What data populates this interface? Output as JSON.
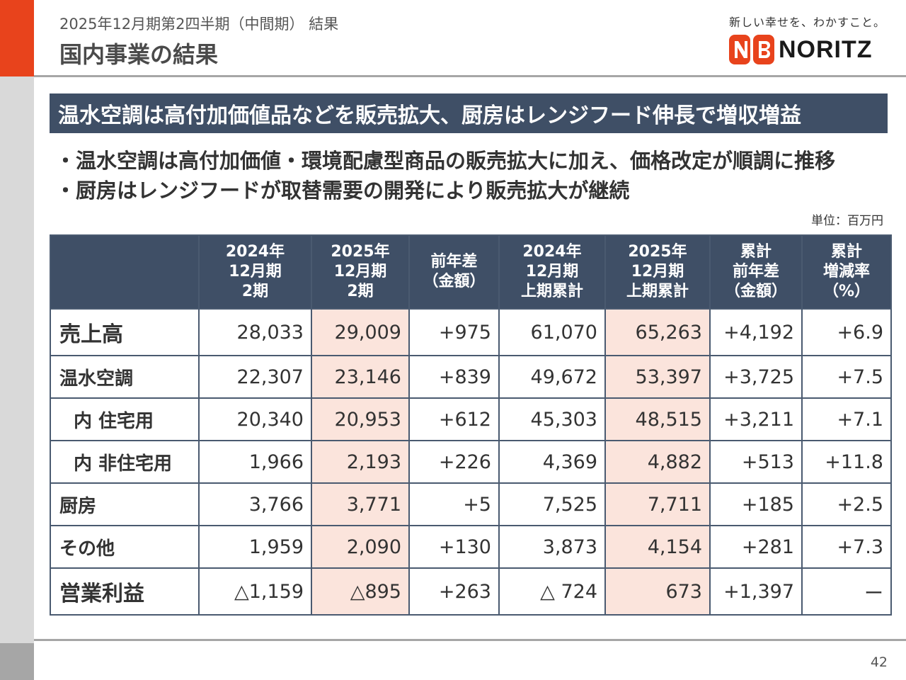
{
  "header": {
    "subtitle": "2025年12月期第2四半期（中間期） 結果",
    "title": "国内事業の結果"
  },
  "brand": {
    "tagline": "新しい幸せを、わかすこと。",
    "logo_text": "NORITZ",
    "accent_color": "#e8431c",
    "navy_color": "#3f4f66",
    "highlight_color": "#fbe4dc"
  },
  "banner": {
    "text": "温水空調は高付加価値品などを販売拡大、厨房はレンジフード伸長で増収増益"
  },
  "bullets": [
    "・温水空調は高付加価値・環境配慮型商品の販売拡大に加え、価格改定が順調に推移",
    "・厨房はレンジフードが取替需要の開発により販売拡大が継続"
  ],
  "unit": "単位：百万円",
  "table": {
    "columns": [
      "",
      "2024年\n12月期\n2期",
      "2025年\n12月期\n2期",
      "前年差\n（金額）",
      "2024年\n12月期\n上期累計",
      "2025年\n12月期\n上期累計",
      "累計\n前年差\n（金額）",
      "累計\n増減率\n（%）"
    ],
    "rows": [
      {
        "label": "売上高",
        "values": [
          "28,033",
          "29,009",
          "+975",
          "61,070",
          "65,263",
          "+4,192",
          "+6.9"
        ]
      },
      {
        "label": "温水空調",
        "values": [
          "22,307",
          "23,146",
          "+839",
          "49,672",
          "53,397",
          "+3,725",
          "+7.5"
        ]
      },
      {
        "label": "内 住宅用",
        "values": [
          "20,340",
          "20,953",
          "+612",
          "45,303",
          "48,515",
          "+3,211",
          "+7.1"
        ]
      },
      {
        "label": "内 非住宅用",
        "values": [
          "1,966",
          "2,193",
          "+226",
          "4,369",
          "4,882",
          "+513",
          "+11.8"
        ]
      },
      {
        "label": "厨房",
        "values": [
          "3,766",
          "3,771",
          "+5",
          "7,525",
          "7,711",
          "+185",
          "+2.5"
        ]
      },
      {
        "label": "その他",
        "values": [
          "1,959",
          "2,090",
          "+130",
          "3,873",
          "4,154",
          "+281",
          "+7.3"
        ]
      },
      {
        "label": "営業利益",
        "values": [
          "△1,159",
          "△895",
          "+263",
          "△ 724",
          "673",
          "+1,397",
          "ー"
        ]
      }
    ]
  },
  "page_number": "42"
}
